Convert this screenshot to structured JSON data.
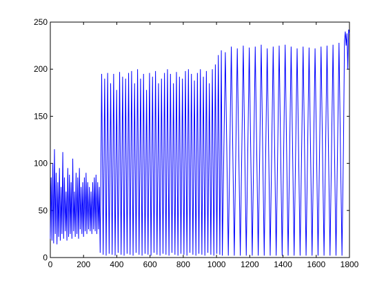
{
  "chart_data": {
    "type": "line",
    "x": [
      0,
      5,
      10,
      15,
      20,
      25,
      30,
      35,
      40,
      45,
      50,
      55,
      60,
      65,
      70,
      75,
      80,
      85,
      90,
      95,
      100,
      105,
      110,
      115,
      120,
      125,
      130,
      135,
      140,
      145,
      150,
      155,
      160,
      165,
      170,
      175,
      180,
      185,
      190,
      195,
      200,
      205,
      210,
      215,
      220,
      225,
      230,
      235,
      240,
      245,
      250,
      255,
      260,
      265,
      270,
      275,
      280,
      285,
      290,
      295,
      300,
      309,
      318,
      327,
      336,
      345,
      354,
      363,
      372,
      381,
      390,
      399,
      408,
      417,
      426,
      435,
      444,
      453,
      462,
      471,
      480,
      489,
      498,
      507,
      516,
      525,
      534,
      543,
      552,
      561,
      570,
      579,
      588,
      597,
      606,
      615,
      624,
      633,
      642,
      651,
      660,
      669,
      678,
      687,
      696,
      705,
      714,
      723,
      732,
      741,
      750,
      759,
      768,
      777,
      786,
      795,
      804,
      813,
      822,
      831,
      840,
      849,
      858,
      867,
      876,
      885,
      894,
      903,
      912,
      921,
      930,
      939,
      948,
      957,
      966,
      975,
      984,
      993,
      1002,
      1011,
      1020,
      1029,
      1035,
      1044,
      1053,
      1062,
      1071,
      1080,
      1089,
      1098,
      1107,
      1116,
      1125,
      1134,
      1143,
      1152,
      1161,
      1170,
      1179,
      1188,
      1197,
      1206,
      1215,
      1224,
      1233,
      1242,
      1251,
      1260,
      1269,
      1278,
      1287,
      1296,
      1305,
      1314,
      1323,
      1332,
      1341,
      1350,
      1359,
      1368,
      1377,
      1386,
      1395,
      1404,
      1413,
      1422,
      1431,
      1440,
      1449,
      1458,
      1467,
      1476,
      1485,
      1494,
      1503,
      1512,
      1521,
      1530,
      1539,
      1548,
      1557,
      1566,
      1575,
      1584,
      1593,
      1602,
      1611,
      1620,
      1629,
      1638,
      1647,
      1656,
      1665,
      1674,
      1683,
      1692,
      1701,
      1710,
      1719,
      1728,
      1737,
      1746,
      1755,
      1764,
      1770,
      1775,
      1780,
      1785,
      1790,
      1795,
      1800
    ],
    "series": [
      {
        "color": "#0000ff",
        "values": [
          20,
          85,
          18,
          100,
          15,
          115,
          25,
          90,
          14,
          80,
          22,
          95,
          18,
          75,
          25,
          112,
          20,
          85,
          28,
          70,
          18,
          95,
          22,
          88,
          25,
          80,
          20,
          105,
          28,
          70,
          22,
          90,
          25,
          85,
          20,
          95,
          30,
          75,
          25,
          80,
          22,
          85,
          28,
          90,
          25,
          80,
          30,
          75,
          28,
          70,
          25,
          80,
          30,
          85,
          28,
          88,
          25,
          80,
          30,
          75,
          5,
          195,
          3,
          190,
          2,
          196,
          4,
          185,
          3,
          195,
          2,
          178,
          5,
          197,
          3,
          192,
          2,
          190,
          4,
          196,
          3,
          198,
          2,
          185,
          5,
          200,
          3,
          190,
          2,
          195,
          4,
          178,
          3,
          196,
          2,
          192,
          5,
          198,
          3,
          185,
          2,
          190,
          4,
          196,
          3,
          200,
          2,
          195,
          5,
          185,
          3,
          197,
          2,
          192,
          4,
          190,
          3,
          198,
          2,
          200,
          5,
          195,
          3,
          188,
          2,
          196,
          4,
          200,
          3,
          192,
          2,
          198,
          5,
          185,
          3,
          200,
          2,
          205,
          4,
          215,
          3,
          220,
          2,
          112,
          218,
          112,
          2,
          112,
          224,
          112,
          2,
          112,
          222,
          112,
          2,
          112,
          225,
          112,
          2,
          112,
          223,
          112,
          2,
          112,
          224,
          112,
          2,
          112,
          226,
          112,
          2,
          112,
          222,
          112,
          2,
          112,
          224,
          112,
          2,
          112,
          225,
          112,
          2,
          112,
          226,
          112,
          2,
          112,
          224,
          112,
          2,
          112,
          222,
          112,
          2,
          112,
          224,
          112,
          2,
          112,
          223,
          112,
          2,
          112,
          222,
          112,
          2,
          112,
          224,
          112,
          2,
          112,
          225,
          112,
          2,
          112,
          226,
          112,
          2,
          112,
          228,
          112,
          2,
          120,
          230,
          240,
          225,
          238,
          200,
          242,
          238
        ]
      }
    ],
    "xlim": [
      0,
      1800
    ],
    "xticks": [
      0,
      200,
      400,
      600,
      800,
      1000,
      1200,
      1400,
      1600,
      1800
    ],
    "ylim": [
      0,
      250
    ],
    "yticks": [
      0,
      50,
      100,
      150,
      200,
      250
    ]
  }
}
